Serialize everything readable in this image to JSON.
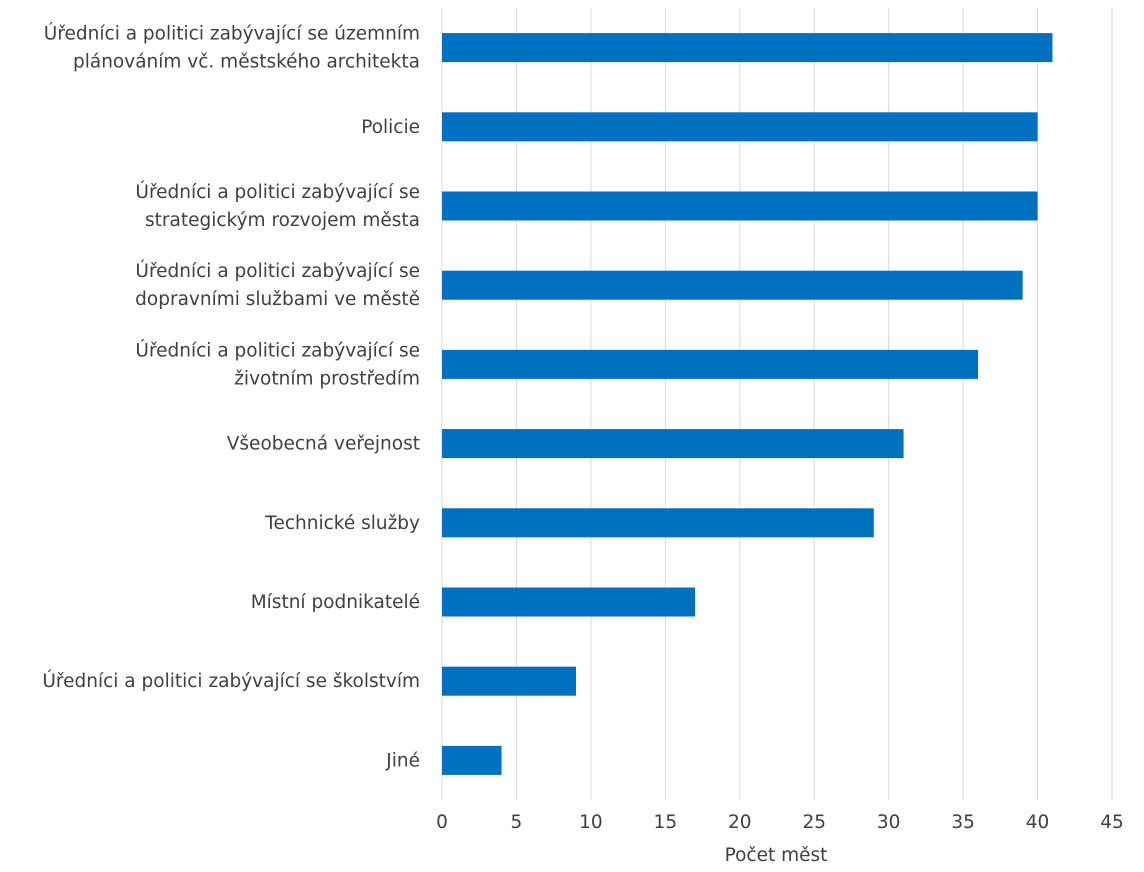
{
  "chart_data": {
    "type": "bar",
    "orientation": "horizontal",
    "categories": [
      [
        "Úředníci a politici zabývající se územním",
        "plánováním vč. městského architekta"
      ],
      [
        "Policie"
      ],
      [
        "Úředníci a politici zabývající se",
        "strategickým rozvojem města"
      ],
      [
        "Úředníci a politici zabývající se",
        "dopravními službami ve městě"
      ],
      [
        "Úředníci a politici zabývající se",
        "životním prostředím"
      ],
      [
        "Všeobecná veřejnost"
      ],
      [
        "Technické služby"
      ],
      [
        "Místní podnikatelé"
      ],
      [
        "Úředníci a politici zabývající se školstvím"
      ],
      [
        "Jiné"
      ]
    ],
    "values": [
      41,
      40,
      40,
      39,
      36,
      31,
      29,
      17,
      9,
      4
    ],
    "xlabel": "Počet měst",
    "ylabel": "",
    "xlim": [
      0,
      45
    ],
    "xticks": [
      0,
      5,
      10,
      15,
      20,
      25,
      30,
      35,
      40,
      45
    ],
    "grid": "vertical",
    "legend": "none",
    "bar_color": "#0070c0"
  }
}
